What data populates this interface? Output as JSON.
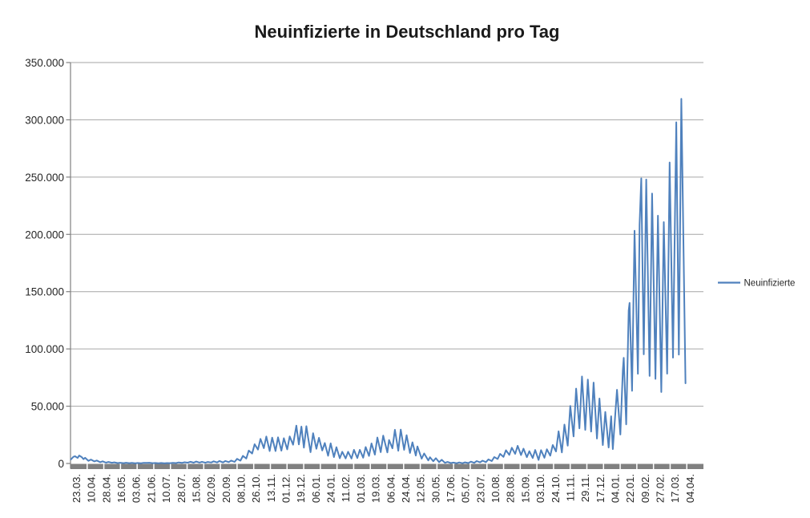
{
  "title": "Neuinfizierte in Deutschland pro Tag",
  "legend": {
    "label": "Neuinfizierte",
    "position": "right"
  },
  "style_colors": {
    "series_blue": "#4F81BD",
    "gridline": "#A6A6A6",
    "axis_bar": "#808080",
    "axis_line": "#808080",
    "text": "#262626",
    "title_text": "#1a1a1a",
    "background": "#ffffff"
  },
  "chart_data": {
    "type": "line",
    "title": "Neuinfizierte in Deutschland pro Tag",
    "grid": true,
    "legend_position": "right",
    "y_axis": {
      "min": 0,
      "max": 350000,
      "step": 50000,
      "tick_values": [
        0,
        50000,
        100000,
        150000,
        200000,
        250000,
        300000,
        350000
      ],
      "tick_labels": [
        "0",
        "50.000",
        "100.000",
        "150.000",
        "200.000",
        "250.000",
        "300.000",
        "350.000"
      ]
    },
    "x_axis": {
      "tick_labels": [
        "23.03.",
        "10.04.",
        "28.04.",
        "16.05.",
        "03.06.",
        "21.06.",
        "10.07.",
        "28.07.",
        "15.08.",
        "02.09.",
        "20.09.",
        "08.10.",
        "26.10.",
        "13.11.",
        "01.12.",
        "19.12.",
        "06.01.",
        "24.01.",
        "11.02.",
        "01.03.",
        "19.03.",
        "06.04.",
        "24.04.",
        "12.05.",
        "30.05.",
        "17.06.",
        "05.07.",
        "23.07.",
        "10.08.",
        "28.08.",
        "15.09.",
        "03.10.",
        "24.10.",
        "11.11.",
        "29.11.",
        "17.12.",
        "04.01.",
        "22.01.",
        "09.02.",
        "27.02.",
        "17.03.",
        "04.04.",
        ""
      ],
      "label_interval_days": 18,
      "total_days": 758
    },
    "series": [
      {
        "name": "Neuinfizierte",
        "color": "#4F81BD",
        "points": [
          [
            0,
            3500
          ],
          [
            3,
            5800
          ],
          [
            5,
            6300
          ],
          [
            8,
            4800
          ],
          [
            10,
            6900
          ],
          [
            13,
            5500
          ],
          [
            15,
            3800
          ],
          [
            17,
            5000
          ],
          [
            21,
            2300
          ],
          [
            24,
            3400
          ],
          [
            28,
            1800
          ],
          [
            31,
            2600
          ],
          [
            35,
            1100
          ],
          [
            38,
            1900
          ],
          [
            42,
            700
          ],
          [
            45,
            1300
          ],
          [
            49,
            600
          ],
          [
            52,
            950
          ],
          [
            56,
            350
          ],
          [
            59,
            650
          ],
          [
            63,
            300
          ],
          [
            66,
            600
          ],
          [
            70,
            250
          ],
          [
            73,
            500
          ],
          [
            77,
            220
          ],
          [
            80,
            450
          ],
          [
            84,
            200
          ],
          [
            87,
            580
          ],
          [
            91,
            480
          ],
          [
            94,
            630
          ],
          [
            98,
            260
          ],
          [
            101,
            450
          ],
          [
            105,
            200
          ],
          [
            108,
            400
          ],
          [
            112,
            170
          ],
          [
            115,
            360
          ],
          [
            119,
            250
          ],
          [
            122,
            560
          ],
          [
            126,
            350
          ],
          [
            129,
            900
          ],
          [
            133,
            520
          ],
          [
            136,
            1050
          ],
          [
            140,
            720
          ],
          [
            143,
            1450
          ],
          [
            147,
            700
          ],
          [
            150,
            1700
          ],
          [
            154,
            790
          ],
          [
            157,
            1480
          ],
          [
            161,
            620
          ],
          [
            164,
            1300
          ],
          [
            168,
            810
          ],
          [
            171,
            1890
          ],
          [
            175,
            930
          ],
          [
            178,
            2200
          ],
          [
            182,
            940
          ],
          [
            185,
            2150
          ],
          [
            189,
            1210
          ],
          [
            192,
            2500
          ],
          [
            196,
            1410
          ],
          [
            199,
            4060
          ],
          [
            203,
            2470
          ],
          [
            206,
            6640
          ],
          [
            210,
            4330
          ],
          [
            213,
            11290
          ],
          [
            217,
            8690
          ],
          [
            220,
            16770
          ],
          [
            224,
            12100
          ],
          [
            227,
            21510
          ],
          [
            231,
            13360
          ],
          [
            234,
            23540
          ],
          [
            238,
            10820
          ],
          [
            241,
            22610
          ],
          [
            245,
            10860
          ],
          [
            248,
            22810
          ],
          [
            252,
            11170
          ],
          [
            255,
            22050
          ],
          [
            259,
            12330
          ],
          [
            262,
            23680
          ],
          [
            266,
            16360
          ],
          [
            270,
            33010
          ],
          [
            273,
            16640
          ],
          [
            276,
            32200
          ],
          [
            279,
            13760
          ],
          [
            282,
            32550
          ],
          [
            284,
            22920
          ],
          [
            287,
            9850
          ],
          [
            290,
            26390
          ],
          [
            294,
            12800
          ],
          [
            297,
            22370
          ],
          [
            301,
            11370
          ],
          [
            304,
            17860
          ],
          [
            308,
            6730
          ],
          [
            311,
            17550
          ],
          [
            315,
            5610
          ],
          [
            318,
            14210
          ],
          [
            322,
            4540
          ],
          [
            325,
            10240
          ],
          [
            329,
            4430
          ],
          [
            332,
            10210
          ],
          [
            336,
            4370
          ],
          [
            339,
            11870
          ],
          [
            343,
            4730
          ],
          [
            346,
            11910
          ],
          [
            350,
            5010
          ],
          [
            353,
            14360
          ],
          [
            357,
            6600
          ],
          [
            360,
            17500
          ],
          [
            364,
            7710
          ],
          [
            367,
            22660
          ],
          [
            371,
            9870
          ],
          [
            374,
            24300
          ],
          [
            379,
            9680
          ],
          [
            381,
            20410
          ],
          [
            385,
            13250
          ],
          [
            388,
            29430
          ],
          [
            392,
            11100
          ],
          [
            395,
            29520
          ],
          [
            399,
            11910
          ],
          [
            402,
            24740
          ],
          [
            406,
            9160
          ],
          [
            409,
            18490
          ],
          [
            413,
            6920
          ],
          [
            415,
            14910
          ],
          [
            420,
            4210
          ],
          [
            423,
            8770
          ],
          [
            428,
            2630
          ],
          [
            430,
            5430
          ],
          [
            434,
            1980
          ],
          [
            437,
            4640
          ],
          [
            441,
            1120
          ],
          [
            444,
            3190
          ],
          [
            448,
            550
          ],
          [
            451,
            1330
          ],
          [
            455,
            350
          ],
          [
            458,
            770
          ],
          [
            462,
            220
          ],
          [
            465,
            890
          ],
          [
            469,
            210
          ],
          [
            472,
            970
          ],
          [
            476,
            320
          ],
          [
            479,
            1640
          ],
          [
            483,
            550
          ],
          [
            486,
            2090
          ],
          [
            490,
            960
          ],
          [
            493,
            2450
          ],
          [
            497,
            1180
          ],
          [
            500,
            3540
          ],
          [
            504,
            2130
          ],
          [
            507,
            5580
          ],
          [
            511,
            3910
          ],
          [
            514,
            8400
          ],
          [
            518,
            5750
          ],
          [
            521,
            11560
          ],
          [
            525,
            7510
          ],
          [
            528,
            13720
          ],
          [
            532,
            8420
          ],
          [
            535,
            15430
          ],
          [
            539,
            7350
          ],
          [
            542,
            12930
          ],
          [
            546,
            5510
          ],
          [
            549,
            10700
          ],
          [
            553,
            4750
          ],
          [
            556,
            11780
          ],
          [
            560,
            3090
          ],
          [
            563,
            11640
          ],
          [
            567,
            4970
          ],
          [
            570,
            12380
          ],
          [
            574,
            6770
          ],
          [
            577,
            16080
          ],
          [
            581,
            10470
          ],
          [
            584,
            28040
          ],
          [
            588,
            9660
          ],
          [
            591,
            33950
          ],
          [
            595,
            15510
          ],
          [
            598,
            50200
          ],
          [
            602,
            23610
          ],
          [
            605,
            65370
          ],
          [
            609,
            30640
          ],
          [
            612,
            75960
          ],
          [
            616,
            29360
          ],
          [
            619,
            73210
          ],
          [
            623,
            27840
          ],
          [
            626,
            70610
          ],
          [
            630,
            21740
          ],
          [
            633,
            56680
          ],
          [
            637,
            16090
          ],
          [
            640,
            44930
          ],
          [
            644,
            13910
          ],
          [
            647,
            41240
          ],
          [
            649,
            12520
          ],
          [
            654,
            64340
          ],
          [
            658,
            25260
          ],
          [
            661,
            81420
          ],
          [
            662,
            92220
          ],
          [
            665,
            34150
          ],
          [
            668,
            133540
          ],
          [
            669,
            140160
          ],
          [
            672,
            63390
          ],
          [
            675,
            203140
          ],
          [
            679,
            78320
          ],
          [
            681,
            208500
          ],
          [
            683,
            248840
          ],
          [
            686,
            95270
          ],
          [
            689,
            247860
          ],
          [
            693,
            76470
          ],
          [
            696,
            235630
          ],
          [
            700,
            73870
          ],
          [
            703,
            216320
          ],
          [
            707,
            62350
          ],
          [
            710,
            210670
          ],
          [
            714,
            78430
          ],
          [
            717,
            262750
          ],
          [
            721,
            92380
          ],
          [
            725,
            297850
          ],
          [
            728,
            95000
          ],
          [
            731,
            318390
          ],
          [
            736,
            70000
          ]
        ]
      }
    ]
  }
}
